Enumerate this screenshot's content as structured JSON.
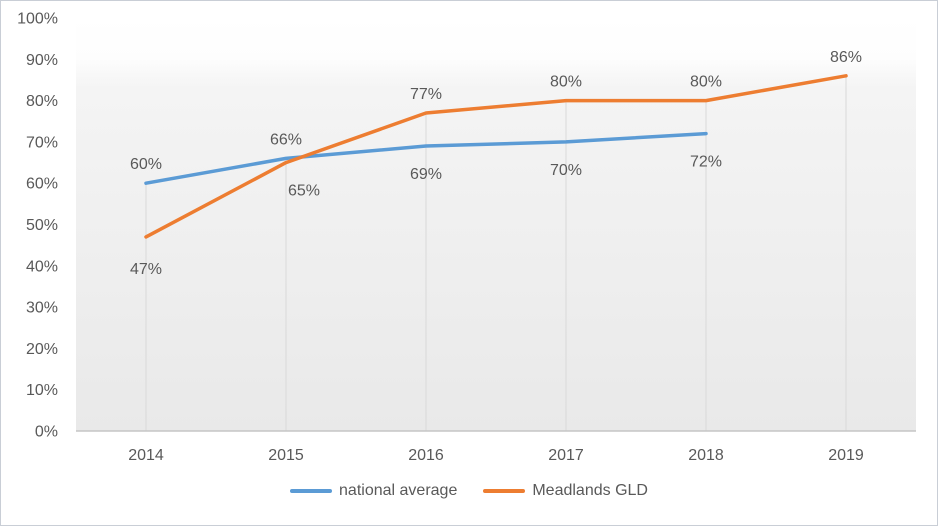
{
  "chart_data": {
    "type": "line",
    "title": "",
    "xlabel": "",
    "ylabel": "",
    "categories": [
      "2014",
      "2015",
      "2016",
      "2017",
      "2018",
      "2019"
    ],
    "series": [
      {
        "name": "national average",
        "color": "#5b9bd5",
        "values": [
          60,
          66,
          69,
          70,
          72,
          null
        ],
        "labels": [
          {
            "text": "60%",
            "pos": "above"
          },
          {
            "text": "66%",
            "pos": "above"
          },
          {
            "text": "69%",
            "pos": "below"
          },
          {
            "text": "70%",
            "pos": "below"
          },
          {
            "text": "72%",
            "pos": "below"
          },
          null
        ]
      },
      {
        "name": "Meadlands GLD",
        "color": "#ed7d31",
        "values": [
          47,
          65,
          77,
          80,
          80,
          86
        ],
        "labels": [
          {
            "text": "47%",
            "pos": "below",
            "dy": 4
          },
          {
            "text": "65%",
            "pos": "below",
            "dx": 18
          },
          {
            "text": "77%",
            "pos": "above"
          },
          {
            "text": "80%",
            "pos": "above"
          },
          {
            "text": "80%",
            "pos": "above"
          },
          {
            "text": "86%",
            "pos": "above"
          }
        ]
      }
    ],
    "ylim": [
      0,
      100
    ],
    "ytick_step": 10,
    "ytick_labels": [
      "0%",
      "10%",
      "20%",
      "30%",
      "40%",
      "50%",
      "60%",
      "70%",
      "80%",
      "90%",
      "100%"
    ],
    "grid": "vertical-drop-lines",
    "legend_position": "bottom",
    "text_color": "#595959",
    "axis_color": "#c6c6c6",
    "dropline_color": "#d9d9d9",
    "plot_fill_top": "#ffffff",
    "plot_fill_bottom": "#e9e9e9"
  }
}
